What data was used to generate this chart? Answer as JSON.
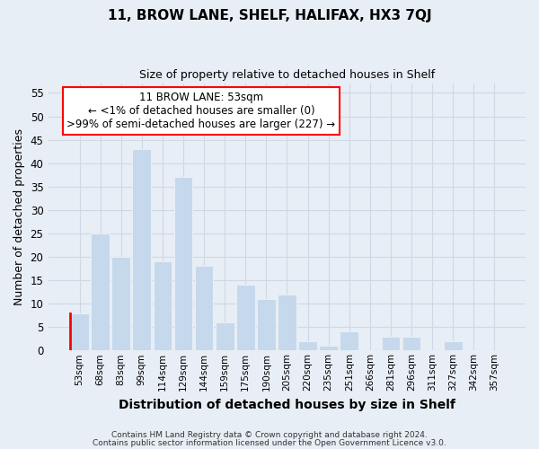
{
  "title": "11, BROW LANE, SHELF, HALIFAX, HX3 7QJ",
  "subtitle": "Size of property relative to detached houses in Shelf",
  "xlabel": "Distribution of detached houses by size in Shelf",
  "ylabel": "Number of detached properties",
  "bar_labels": [
    "53sqm",
    "68sqm",
    "83sqm",
    "99sqm",
    "114sqm",
    "129sqm",
    "144sqm",
    "159sqm",
    "175sqm",
    "190sqm",
    "205sqm",
    "220sqm",
    "235sqm",
    "251sqm",
    "266sqm",
    "281sqm",
    "296sqm",
    "311sqm",
    "327sqm",
    "342sqm",
    "357sqm"
  ],
  "bar_values": [
    8,
    25,
    20,
    43,
    19,
    37,
    18,
    6,
    14,
    11,
    12,
    2,
    1,
    4,
    0,
    3,
    3,
    0,
    2,
    0,
    0
  ],
  "bar_color": "#c5d8ec",
  "highlight_index": 0,
  "ylim": [
    0,
    57
  ],
  "yticks": [
    0,
    5,
    10,
    15,
    20,
    25,
    30,
    35,
    40,
    45,
    50,
    55
  ],
  "annotation_title": "11 BROW LANE: 53sqm",
  "annotation_line1": "← <1% of detached houses are smaller (0)",
  "annotation_line2": ">99% of semi-detached houses are larger (227) →",
  "footer1": "Contains HM Land Registry data © Crown copyright and database right 2024.",
  "footer2": "Contains public sector information licensed under the Open Government Licence v3.0.",
  "bg_color": "#e8eef5",
  "grid_color": "#d0d8e4"
}
